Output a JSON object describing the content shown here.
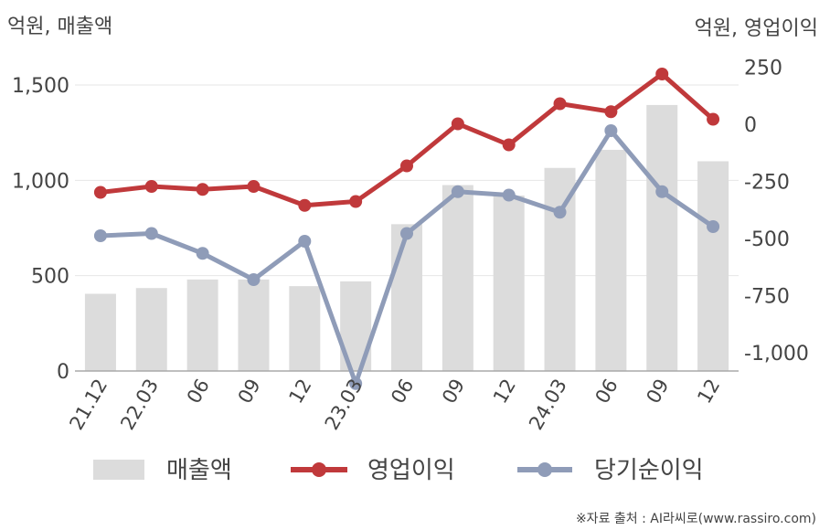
{
  "chart_data": {
    "type": "bar+line",
    "categories": [
      "21.12",
      "22.03",
      "06",
      "09",
      "12",
      "23.03",
      "06",
      "09",
      "12",
      "24.03",
      "06",
      "09",
      "12"
    ],
    "y_left": {
      "label": "억원, 매출액",
      "ticks": [
        "0",
        "500",
        "1,000",
        "1,500"
      ],
      "ylim": [
        0,
        1500
      ]
    },
    "y_right": {
      "label": "억원, 영업이익",
      "ticks": [
        "250",
        "0",
        "-250",
        "-500",
        "-750",
        "-1,000"
      ],
      "ylim": [
        -1200,
        250
      ]
    },
    "series": [
      {
        "name": "매출액",
        "kind": "bar",
        "axis": "left",
        "color": "#dcdcdc",
        "values": [
          405,
          435,
          480,
          480,
          445,
          470,
          770,
          975,
          920,
          1065,
          1160,
          1395,
          1100
        ]
      },
      {
        "name": "영업이익",
        "kind": "line",
        "axis": "right",
        "color": "#c0393b",
        "values": [
          -298,
          -272,
          -285,
          -272,
          -355,
          -338,
          -182,
          2,
          -90,
          90,
          55,
          220,
          22
        ]
      },
      {
        "name": "당기순이익",
        "kind": "line",
        "axis": "right",
        "color": "#8f9cb8",
        "values": [
          -488,
          -478,
          -565,
          -680,
          -512,
          -1135,
          -478,
          -295,
          -310,
          -385,
          -28,
          -295,
          -448
        ]
      }
    ],
    "grid": true,
    "legend_position": "bottom"
  },
  "source_note": "※자료 출처 : AI라씨로(www.rassiro.com)"
}
